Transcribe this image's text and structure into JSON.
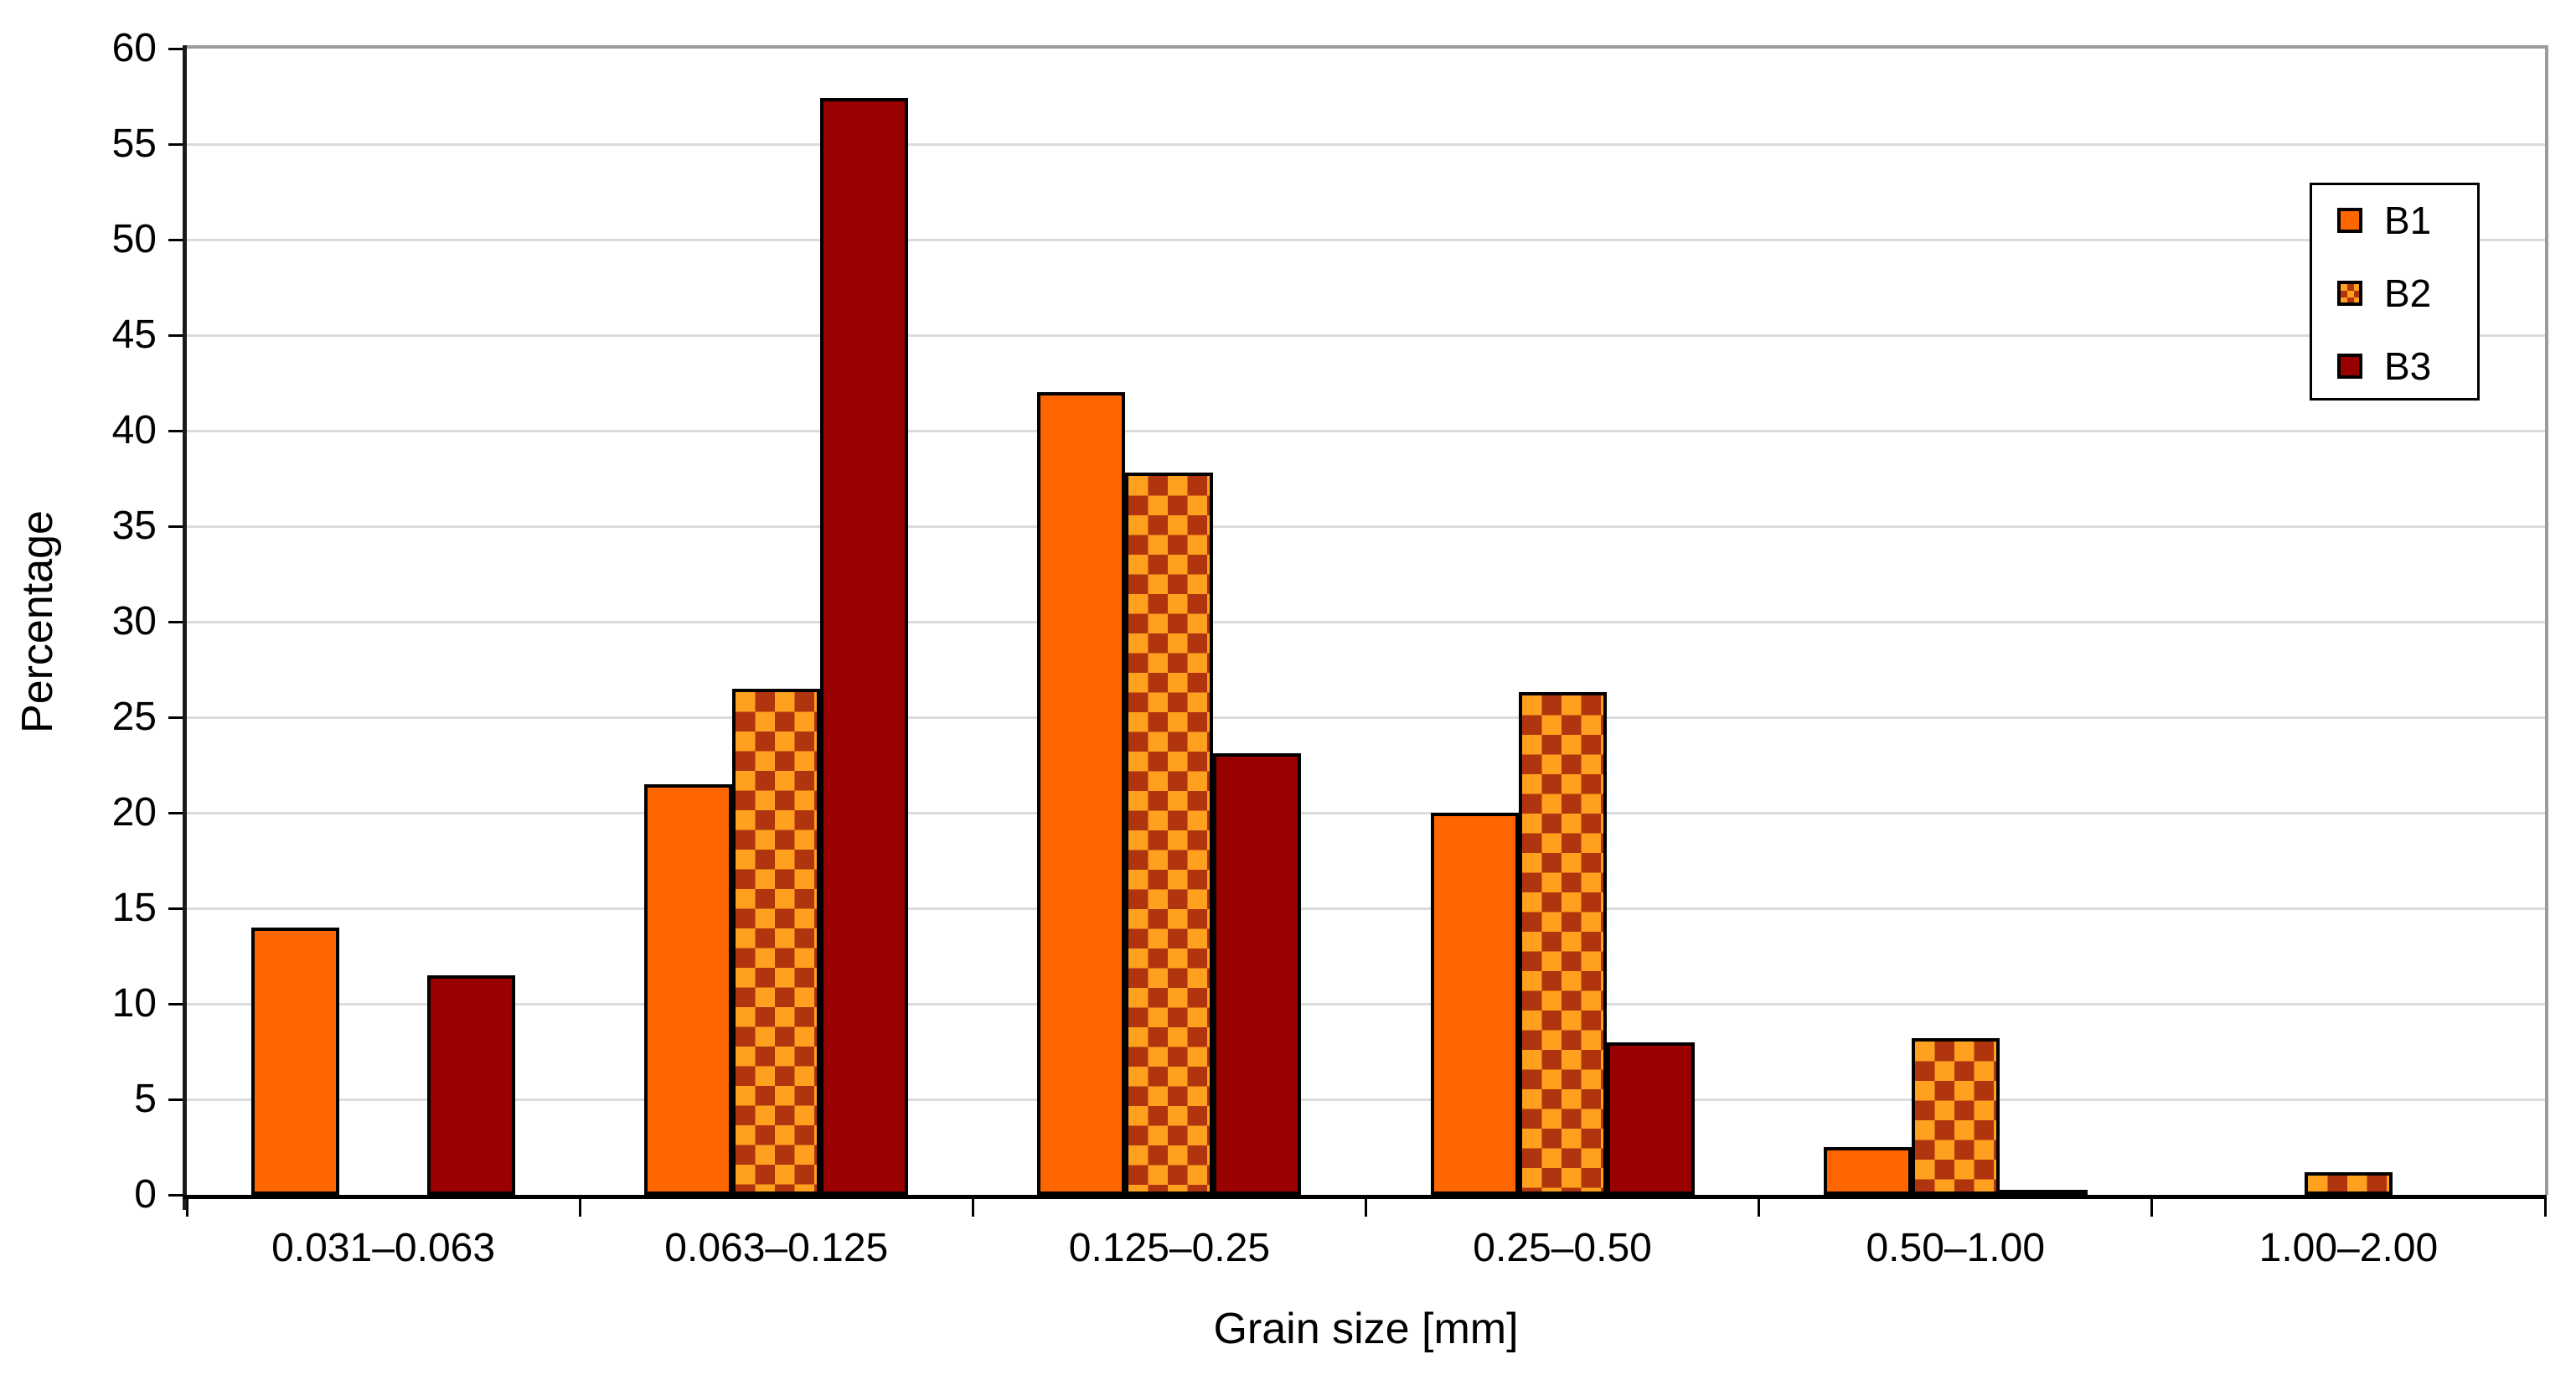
{
  "chart_data": {
    "type": "bar",
    "title": "",
    "xlabel": "Grain size [mm]",
    "ylabel": "Percentage",
    "categories": [
      "0.031–0.063",
      "0.063–0.125",
      "0.125–0.25",
      "0.25–0.50",
      "0.50–1.00",
      "1.00–2.00"
    ],
    "series": [
      {
        "name": "B1",
        "values": [
          14.0,
          21.5,
          42.0,
          20.0,
          2.5,
          0
        ],
        "fill": "#FF6600",
        "pattern": "solid"
      },
      {
        "name": "B2",
        "values": [
          0,
          26.5,
          37.8,
          26.3,
          8.2,
          1.2
        ],
        "fill": "#FFA11E",
        "pattern": "checker",
        "pattern_color": "#B0340E"
      },
      {
        "name": "B3",
        "values": [
          11.5,
          57.4,
          23.1,
          8.0,
          0.1,
          0
        ],
        "fill": "#990000",
        "pattern": "solid"
      }
    ],
    "ylim": [
      0,
      60
    ],
    "ytick_step": 5,
    "yticks": [
      0,
      5,
      10,
      15,
      20,
      25,
      30,
      35,
      40,
      45,
      50,
      55,
      60
    ],
    "grid": true,
    "legend_position": "top-right",
    "legend_entries": [
      "B1",
      "B2",
      "B3"
    ]
  },
  "colors": {
    "background": "#FFFFFF",
    "bar_border": "#000000",
    "gridline": "#DBDBDB",
    "axis_line": "#000000",
    "plot_border": "#9B9B9B",
    "text": "#000000"
  }
}
